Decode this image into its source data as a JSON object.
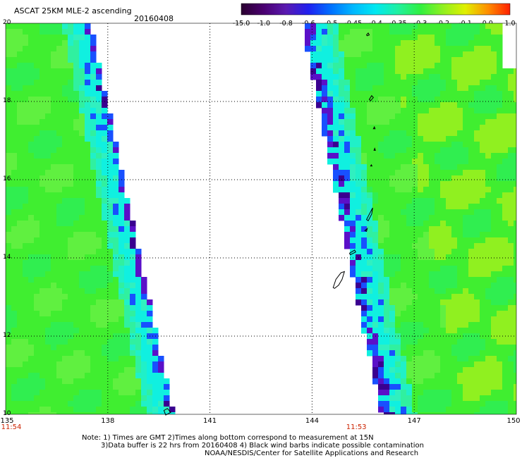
{
  "header": {
    "title": "ASCAT 25KM MLE-2 ascending",
    "date": "20160408"
  },
  "colorbar": {
    "labels": [
      "-15.0",
      "-1.0",
      "-0.8",
      "-0.6",
      "-0.5",
      "-0.45",
      "-0.4",
      "-0.35",
      "-0.3",
      "-0.2",
      "-0.1",
      "0.0",
      "1.0"
    ],
    "colors": [
      "#2a0030",
      "#4a0070",
      "#5a1ab0",
      "#2020f0",
      "#0070ff",
      "#00b8ff",
      "#00e8f0",
      "#20f0a0",
      "#30f040",
      "#90f020",
      "#e0f000",
      "#ff9000",
      "#ff2000"
    ]
  },
  "map": {
    "x_ticks": [
      "135",
      "138",
      "141",
      "144",
      "147",
      "150"
    ],
    "y_ticks": [
      "10",
      "12",
      "14",
      "16",
      "18",
      "20"
    ],
    "x_range": [
      135,
      150
    ],
    "y_range": [
      10,
      20
    ],
    "pass_times": [
      {
        "label": "11:54",
        "lon": 135
      },
      {
        "label": "11:53",
        "lon": 145.3
      }
    ],
    "colors": {
      "green": "#40ee30",
      "lime": "#90f020",
      "cyan": "#10f0e0",
      "blue": "#1850ff",
      "purple": "#5a10c8",
      "dark_purple": "#3a0090",
      "land": "#000000"
    }
  },
  "notes": {
    "line1": "Note: 1) Times are GMT 2)Times along bottom correspond to measurement at 15N",
    "line2": "3)Data buffer is 22 hrs from 20160408 4) Black wind barbs indicate possible contamination",
    "line3": "NOAA/NESDIS/Center for Satellite Applications and Research"
  }
}
